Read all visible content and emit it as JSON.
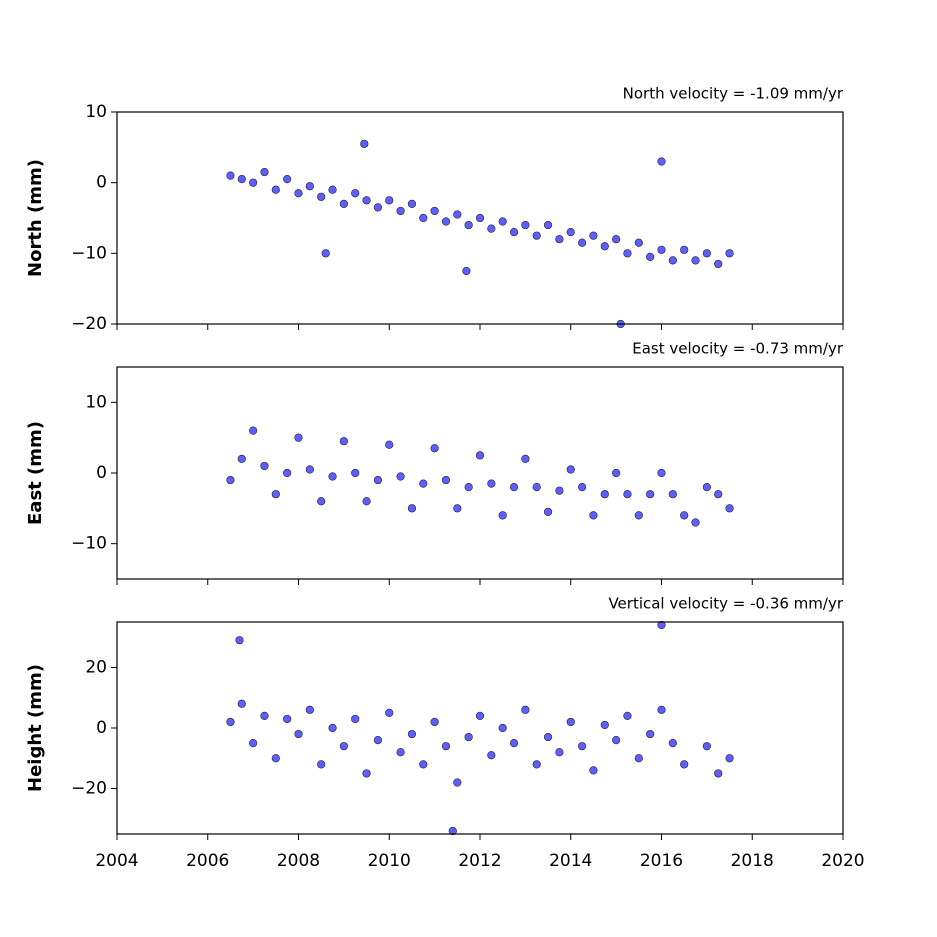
{
  "chart_data": [
    {
      "type": "scatter",
      "title": "North velocity = -1.09 mm/yr",
      "y_label": "North (mm)",
      "color": "#4d4dff",
      "x": [
        2006.5,
        2006.75,
        2007,
        2007.25,
        2007.5,
        2007.75,
        2008,
        2008.25,
        2008.5,
        2008.75,
        2009,
        2009.25,
        2009.5,
        2009.75,
        2010,
        2010.25,
        2010.5,
        2010.75,
        2011,
        2011.25,
        2011.5,
        2011.75,
        2012,
        2012.25,
        2012.5,
        2012.75,
        2013,
        2013.25,
        2013.5,
        2013.75,
        2014,
        2014.25,
        2014.5,
        2014.75,
        2015,
        2015.25,
        2015.5,
        2015.75,
        2016,
        2016.25,
        2016.5,
        2016.75,
        2017,
        2017.25,
        2017.5,
        2009.45,
        2016,
        2015.1,
        2008.6,
        2011.7
      ],
      "values": [
        1,
        0.5,
        0,
        1.5,
        -1,
        0.5,
        -1.5,
        -0.5,
        -2,
        -1,
        -3,
        -1.5,
        -2.5,
        -3.5,
        -2.5,
        -4,
        -3,
        -5,
        -4,
        -5.5,
        -4.5,
        -6,
        -5,
        -6.5,
        -5.5,
        -7,
        -6,
        -7.5,
        -6,
        -8,
        -7,
        -8.5,
        -7.5,
        -9,
        -8,
        -10,
        -8.5,
        -10.5,
        -9.5,
        -11,
        -9.5,
        -11,
        -10,
        -11.5,
        -10,
        5.5,
        3,
        -20,
        -10,
        -12.5
      ],
      "xlim": [
        2004,
        2020
      ],
      "xticks": [
        2004,
        2006,
        2008,
        2010,
        2012,
        2014,
        2016,
        2018,
        2020
      ],
      "ylim": [
        -20,
        10
      ],
      "yticks": [
        10,
        0,
        {
          "value": -10,
          "label": "−10"
        },
        {
          "value": -20,
          "label": "−20"
        }
      ]
    },
    {
      "type": "scatter",
      "title": "East velocity = -0.73 mm/yr",
      "y_label": "East (mm)",
      "color": "#4d4dff",
      "x": [
        2006.5,
        2006.75,
        2007,
        2007.25,
        2007.5,
        2007.75,
        2008,
        2008.25,
        2008.5,
        2008.75,
        2009,
        2009.25,
        2009.5,
        2009.75,
        2010,
        2010.25,
        2010.5,
        2010.75,
        2011,
        2011.25,
        2011.5,
        2011.75,
        2012,
        2012.25,
        2012.5,
        2012.75,
        2013,
        2013.25,
        2013.5,
        2013.75,
        2014,
        2014.25,
        2014.5,
        2014.75,
        2015,
        2015.25,
        2015.5,
        2015.75,
        2016,
        2016.25,
        2016.5,
        2016.75,
        2017,
        2017.25,
        2017.5
      ],
      "values": [
        -1,
        2,
        6,
        1,
        -3,
        0,
        5,
        0.5,
        -4,
        -0.5,
        4.5,
        0,
        -4,
        -1,
        4,
        -0.5,
        -5,
        -1.5,
        3.5,
        -1,
        -5,
        -2,
        2.5,
        -1.5,
        -6,
        -2,
        2,
        -2,
        -5.5,
        -2.5,
        0.5,
        -2,
        -6,
        -3,
        0,
        -3,
        -6,
        -3,
        0,
        -3,
        -6,
        -7,
        -2,
        -3,
        -5
      ],
      "xlim": [
        2004,
        2020
      ],
      "xticks": [
        2004,
        2006,
        2008,
        2010,
        2012,
        2014,
        2016,
        2018,
        2020
      ],
      "ylim": [
        -15,
        15
      ],
      "yticks": [
        10,
        0,
        {
          "value": -10,
          "label": "−10"
        }
      ]
    },
    {
      "type": "scatter",
      "title": "Vertical velocity = -0.36 mm/yr",
      "y_label": "Height (mm)",
      "color": "#4d4dff",
      "x": [
        2006.5,
        2006.75,
        2007,
        2007.25,
        2007.5,
        2007.75,
        2008,
        2008.25,
        2008.5,
        2008.75,
        2009,
        2009.25,
        2009.5,
        2009.75,
        2010,
        2010.25,
        2010.5,
        2010.75,
        2011,
        2011.25,
        2011.5,
        2011.75,
        2012,
        2012.25,
        2012.5,
        2012.75,
        2013,
        2013.25,
        2013.5,
        2013.75,
        2014,
        2014.25,
        2014.5,
        2014.75,
        2015,
        2015.25,
        2015.5,
        2015.75,
        2016,
        2016.25,
        2016.5,
        2017,
        2017.25,
        2017.5,
        2006.7,
        2016,
        2011.4
      ],
      "values": [
        2,
        8,
        -5,
        4,
        -10,
        3,
        -2,
        6,
        -12,
        0,
        -6,
        3,
        -15,
        -4,
        5,
        -8,
        -2,
        -12,
        2,
        -6,
        -18,
        -3,
        4,
        -9,
        0,
        -5,
        6,
        -12,
        -3,
        -8,
        2,
        -6,
        -14,
        1,
        -4,
        4,
        -10,
        -2,
        6,
        -5,
        -12,
        -6,
        -15,
        -10,
        29,
        34,
        -34
      ],
      "xlim": [
        2004,
        2020
      ],
      "xticks": [
        2004,
        2006,
        2008,
        2010,
        2012,
        2014,
        2016,
        2018,
        2020
      ],
      "ylim": [
        -35,
        35
      ],
      "yticks": [
        20,
        0,
        {
          "value": -20,
          "label": "−20"
        }
      ]
    }
  ]
}
